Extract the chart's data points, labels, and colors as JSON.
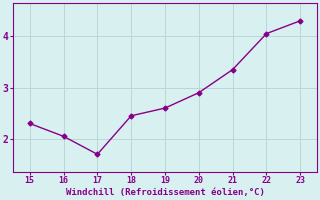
{
  "x": [
    15,
    16,
    17,
    18,
    19,
    20,
    21,
    22,
    23
  ],
  "y": [
    2.3,
    2.05,
    1.7,
    2.45,
    2.6,
    2.9,
    3.35,
    4.05,
    4.3
  ],
  "line_color": "#880088",
  "marker": "D",
  "marker_size": 2.5,
  "xlabel": "Windchill (Refroidissement éolien,°C)",
  "xlabel_color": "#880088",
  "background_color": "#d8f0f0",
  "grid_color": "#b8d8d8",
  "tick_color": "#880088",
  "xlim": [
    14.5,
    23.5
  ],
  "ylim": [
    1.35,
    4.65
  ],
  "xticks": [
    15,
    16,
    17,
    18,
    19,
    20,
    21,
    22,
    23
  ],
  "yticks": [
    2,
    3,
    4
  ],
  "spine_color": "#880088",
  "figsize": [
    3.2,
    2.0
  ],
  "dpi": 100
}
